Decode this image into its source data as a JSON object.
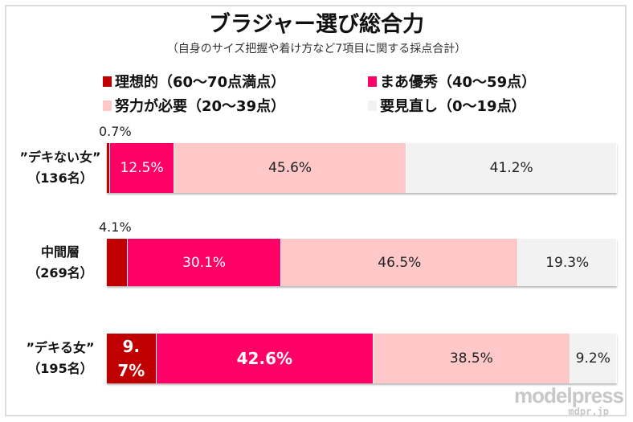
{
  "chart_data": {
    "type": "bar",
    "orientation": "horizontal-stacked-100",
    "title": "ブラジャー選び総合力",
    "subtitle": "（自身のサイズ把握や着け方など7項目に関する採点合計）",
    "legend": [
      {
        "name": "理想的（60〜70点満点）",
        "color": "#c00000"
      },
      {
        "name": "まあ優秀（40〜59点）",
        "color": "#ff0066"
      },
      {
        "name": "努力が必要（20〜39点）",
        "color": "#ffc8c8"
      },
      {
        "name": "要見直し（0〜19点）",
        "color": "#f2f2f2"
      }
    ],
    "categories": [
      {
        "label1": "”デキない女”",
        "label2": "（136名）"
      },
      {
        "label1": "中間層",
        "label2": "（269名）"
      },
      {
        "label1": "”デキる女”",
        "label2": "（195名）"
      }
    ],
    "series": [
      {
        "name": "理想的（60〜70点満点）",
        "values": [
          0.7,
          4.1,
          9.7
        ],
        "labels": [
          "0.7%",
          "4.1%",
          "9.7%"
        ]
      },
      {
        "name": "まあ優秀（40〜59点）",
        "values": [
          12.5,
          30.1,
          42.6
        ],
        "labels": [
          "12.5%",
          "30.1%",
          "42.6%"
        ]
      },
      {
        "name": "努力が必要（20〜39点）",
        "values": [
          45.6,
          46.5,
          38.5
        ],
        "labels": [
          "45.6%",
          "46.5%",
          "38.5%"
        ]
      },
      {
        "name": "要見直し（0〜19点）",
        "values": [
          41.2,
          19.3,
          9.2
        ],
        "labels": [
          "41.2%",
          "19.3%",
          "9.2%"
        ]
      }
    ]
  },
  "watermark": {
    "brand": "modelpress",
    "domain": "mdpr.jp"
  }
}
